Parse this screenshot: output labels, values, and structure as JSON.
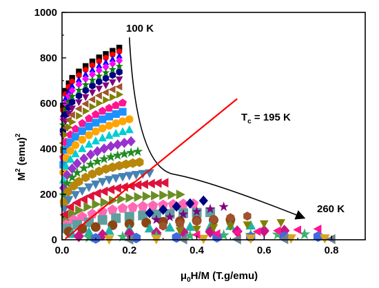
{
  "chart_data": {
    "type": "scatter",
    "title": "",
    "xlabel": {
      "main": "μ",
      "sub": "0",
      "rest": "H/M  (T.g/emu)"
    },
    "ylabel": {
      "main": "M",
      "sup": "2",
      "rest": " (emu)",
      "sup2": "2"
    },
    "xlim": [
      0,
      0.9
    ],
    "ylim": [
      0,
      1000
    ],
    "xticks": [
      "0.0",
      "0.2",
      "0.4",
      "0.6",
      "0.8"
    ],
    "yticks": [
      "0",
      "200",
      "400",
      "600",
      "800",
      "1000"
    ],
    "xtick_values": [
      0,
      0.2,
      0.4,
      0.6,
      0.8
    ],
    "ytick_values": [
      0,
      200,
      400,
      600,
      800,
      1000
    ],
    "grid": false,
    "annotations": {
      "start_temp": "100 K",
      "end_temp": "260 K",
      "tc_main": "T",
      "tc_sub": "c",
      "tc_rest": " = 195 K"
    },
    "arrow_line": {
      "from": [
        0.2,
        890
      ],
      "via": [
        0.24,
        500
      ],
      "to": [
        0.72,
        95
      ]
    },
    "tc_line": {
      "from": [
        0.01,
        5
      ],
      "to": [
        0.52,
        620
      ]
    },
    "series_colors": [
      "#000000",
      "#ff0000",
      "#0000ff",
      "#ff00ff",
      "#008000",
      "#000080",
      "#800080",
      "#a0522d",
      "#808000",
      "#ff1493",
      "#1e90ff",
      "#ffa500",
      "#00ced1",
      "#9932cc",
      "#228b22",
      "#b8860b",
      "#4682b4",
      "#dc143c",
      "#6b8e23",
      "#ff69b4",
      "#5f9ea0",
      "#8b4513",
      "#20b2aa",
      "#c71585",
      "#3cb371",
      "#4169e1",
      "#daa520",
      "#708090"
    ],
    "series_markers": [
      "square",
      "circle",
      "triangle",
      "diamond",
      "star",
      "hexagon",
      "triangle-down",
      "triangle-left",
      "triangle-right",
      "pentagon"
    ],
    "series": [
      {
        "x": [
          0.003,
          0.01,
          0.02,
          0.03,
          0.05,
          0.07,
          0.09,
          0.11,
          0.13,
          0.15,
          0.17
        ],
        "y": [
          590,
          655,
          688,
          712,
          740,
          764,
          784,
          802,
          817,
          831,
          845
        ]
      },
      {
        "x": [
          0.003,
          0.01,
          0.02,
          0.03,
          0.05,
          0.07,
          0.09,
          0.11,
          0.13,
          0.15,
          0.17
        ],
        "y": [
          570,
          640,
          672,
          696,
          723,
          747,
          767,
          785,
          800,
          814,
          828
        ]
      },
      {
        "x": [
          0.003,
          0.01,
          0.02,
          0.03,
          0.05,
          0.07,
          0.09,
          0.11,
          0.13,
          0.15,
          0.17
        ],
        "y": [
          550,
          620,
          652,
          676,
          703,
          727,
          747,
          765,
          780,
          794,
          808
        ]
      },
      {
        "x": [
          0.003,
          0.01,
          0.02,
          0.03,
          0.05,
          0.07,
          0.09,
          0.11,
          0.13,
          0.15,
          0.17
        ],
        "y": [
          530,
          600,
          632,
          656,
          683,
          707,
          727,
          745,
          760,
          774,
          788
        ]
      },
      {
        "x": [
          0.003,
          0.01,
          0.02,
          0.03,
          0.05,
          0.07,
          0.09,
          0.11,
          0.13,
          0.15,
          0.17
        ],
        "y": [
          505,
          575,
          607,
          631,
          658,
          682,
          702,
          720,
          735,
          749,
          763
        ]
      },
      {
        "x": [
          0.003,
          0.01,
          0.02,
          0.03,
          0.05,
          0.07,
          0.09,
          0.11,
          0.13,
          0.15,
          0.17
        ],
        "y": [
          480,
          550,
          582,
          606,
          633,
          657,
          677,
          695,
          710,
          724,
          738
        ]
      },
      {
        "x": [
          0.003,
          0.01,
          0.02,
          0.03,
          0.05,
          0.07,
          0.09,
          0.11,
          0.13,
          0.15,
          0.17
        ],
        "y": [
          455,
          522,
          555,
          578,
          605,
          628,
          648,
          665,
          680,
          693,
          706
        ]
      },
      {
        "x": [
          0.003,
          0.01,
          0.02,
          0.03,
          0.05,
          0.07,
          0.09,
          0.11,
          0.13,
          0.15,
          0.17
        ],
        "y": [
          425,
          493,
          526,
          549,
          576,
          598,
          617,
          634,
          648,
          661,
          673
        ]
      },
      {
        "x": [
          0.003,
          0.01,
          0.02,
          0.03,
          0.05,
          0.07,
          0.09,
          0.11,
          0.13,
          0.15,
          0.17
        ],
        "y": [
          395,
          462,
          495,
          518,
          545,
          566,
          585,
          601,
          615,
          627,
          639
        ]
      },
      {
        "x": [
          0.004,
          0.012,
          0.025,
          0.04,
          0.06,
          0.08,
          0.1,
          0.12,
          0.14,
          0.16,
          0.18
        ],
        "y": [
          362,
          430,
          462,
          487,
          512,
          533,
          551,
          566,
          579,
          591,
          602
        ]
      },
      {
        "x": [
          0.004,
          0.012,
          0.025,
          0.04,
          0.06,
          0.08,
          0.1,
          0.12,
          0.14,
          0.16,
          0.18
        ],
        "y": [
          330,
          396,
          428,
          453,
          478,
          498,
          515,
          530,
          542,
          553,
          563
        ]
      },
      {
        "x": [
          0.004,
          0.012,
          0.025,
          0.04,
          0.06,
          0.08,
          0.1,
          0.12,
          0.14,
          0.16,
          0.18,
          0.2
        ],
        "y": [
          296,
          360,
          391,
          416,
          440,
          460,
          476,
          490,
          502,
          512,
          521,
          530
        ]
      },
      {
        "x": [
          0.004,
          0.012,
          0.025,
          0.04,
          0.06,
          0.08,
          0.1,
          0.12,
          0.14,
          0.16,
          0.18,
          0.2
        ],
        "y": [
          262,
          323,
          353,
          377,
          400,
          419,
          434,
          447,
          458,
          467,
          475,
          483
        ]
      },
      {
        "x": [
          0.005,
          0.015,
          0.03,
          0.045,
          0.065,
          0.085,
          0.105,
          0.125,
          0.145,
          0.165,
          0.185,
          0.205
        ],
        "y": [
          228,
          285,
          313,
          336,
          357,
          375,
          389,
          401,
          411,
          419,
          426,
          433
        ]
      },
      {
        "x": [
          0.005,
          0.015,
          0.03,
          0.045,
          0.065,
          0.085,
          0.105,
          0.125,
          0.145,
          0.165,
          0.185,
          0.205,
          0.225
        ],
        "y": [
          196,
          248,
          274,
          295,
          315,
          331,
          344,
          355,
          364,
          371,
          377,
          383,
          388
        ]
      },
      {
        "x": [
          0.006,
          0.018,
          0.035,
          0.05,
          0.07,
          0.09,
          0.11,
          0.13,
          0.15,
          0.17,
          0.19,
          0.21,
          0.23
        ],
        "y": [
          165,
          212,
          237,
          256,
          274,
          289,
          301,
          311,
          319,
          326,
          332,
          337,
          341
        ]
      },
      {
        "x": [
          0.007,
          0.02,
          0.04,
          0.06,
          0.08,
          0.1,
          0.12,
          0.14,
          0.16,
          0.18,
          0.2,
          0.22,
          0.24,
          0.26
        ],
        "y": [
          136,
          177,
          199,
          216,
          232,
          245,
          256,
          265,
          272,
          278,
          283,
          287,
          291,
          294
        ]
      },
      {
        "x": [
          0.008,
          0.025,
          0.045,
          0.065,
          0.085,
          0.105,
          0.125,
          0.145,
          0.165,
          0.185,
          0.205,
          0.225,
          0.245,
          0.265,
          0.285,
          0.305
        ],
        "y": [
          110,
          144,
          163,
          178,
          192,
          204,
          213,
          221,
          227,
          232,
          237,
          241,
          244,
          247,
          249,
          251
        ]
      },
      {
        "x": [
          0.01,
          0.03,
          0.05,
          0.075,
          0.1,
          0.125,
          0.15,
          0.175,
          0.2,
          0.225,
          0.25,
          0.275,
          0.3,
          0.325,
          0.35
        ],
        "y": [
          86,
          114,
          130,
          144,
          156,
          165,
          173,
          179,
          184,
          188,
          191,
          194,
          196,
          198,
          199
        ]
      },
      {
        "x": [
          0.012,
          0.035,
          0.06,
          0.09,
          0.12,
          0.15,
          0.18,
          0.21,
          0.24,
          0.27,
          0.3,
          0.33,
          0.36,
          0.39
        ],
        "y": [
          66,
          88,
          101,
          113,
          123,
          131,
          138,
          143,
          147,
          150,
          153,
          155,
          157,
          158
        ]
      },
      {
        "x": [
          0.015,
          0.045,
          0.08,
          0.12,
          0.16,
          0.2,
          0.24,
          0.28,
          0.32,
          0.36,
          0.4,
          0.44
        ],
        "y": [
          50,
          66,
          77,
          87,
          95,
          102,
          107,
          111,
          114,
          117,
          119,
          121
        ]
      },
      {
        "x": [
          0.02,
          0.06,
          0.1,
          0.15,
          0.2,
          0.25,
          0.3,
          0.35,
          0.4,
          0.45,
          0.5
        ],
        "y": [
          36,
          48,
          56,
          64,
          70,
          75,
          79,
          82,
          85,
          87,
          89
        ]
      },
      {
        "x": [
          0.03,
          0.08,
          0.14,
          0.2,
          0.26,
          0.32,
          0.38,
          0.44,
          0.5,
          0.56
        ],
        "y": [
          25,
          33,
          39,
          45,
          49,
          53,
          56,
          58,
          60,
          62
        ]
      },
      {
        "x": [
          0.05,
          0.12,
          0.2,
          0.28,
          0.36,
          0.44,
          0.52,
          0.6,
          0.66
        ],
        "y": [
          16,
          21,
          26,
          30,
          33,
          35,
          37,
          39,
          40
        ]
      },
      {
        "x": [
          0.08,
          0.18,
          0.28,
          0.38,
          0.48,
          0.56,
          0.64,
          0.72
        ],
        "y": [
          10,
          13,
          16,
          18,
          20,
          22,
          23,
          24
        ]
      },
      {
        "x": [
          0.1,
          0.22,
          0.34,
          0.46,
          0.56,
          0.66,
          0.76
        ],
        "y": [
          6,
          8,
          10,
          11,
          12,
          13,
          14
        ]
      },
      {
        "x": [
          0.14,
          0.28,
          0.42,
          0.56,
          0.68,
          0.78
        ],
        "y": [
          3,
          4,
          5,
          6,
          7,
          7
        ]
      },
      {
        "x": [
          0.2,
          0.36,
          0.52,
          0.66,
          0.8
        ],
        "y": [
          1,
          2,
          2,
          3,
          3
        ]
      }
    ],
    "mid_series": [
      {
        "x": [
          0.26,
          0.3,
          0.34,
          0.38,
          0.42
        ],
        "y": [
          118,
          132,
          146,
          160,
          172
        ]
      },
      {
        "x": [
          0.28,
          0.32,
          0.36,
          0.4,
          0.44,
          0.48
        ],
        "y": [
          88,
          100,
          112,
          124,
          135,
          145
        ]
      },
      {
        "x": [
          0.3,
          0.35,
          0.4,
          0.45,
          0.5,
          0.55
        ],
        "y": [
          60,
          70,
          80,
          89,
          97,
          104
        ]
      },
      {
        "x": [
          0.35,
          0.4,
          0.45,
          0.5,
          0.55,
          0.6,
          0.65
        ],
        "y": [
          40,
          47,
          54,
          60,
          66,
          71,
          76
        ]
      },
      {
        "x": [
          0.4,
          0.46,
          0.52,
          0.58,
          0.64,
          0.7,
          0.76
        ],
        "y": [
          22,
          27,
          32,
          36,
          40,
          44,
          48
        ]
      }
    ]
  }
}
